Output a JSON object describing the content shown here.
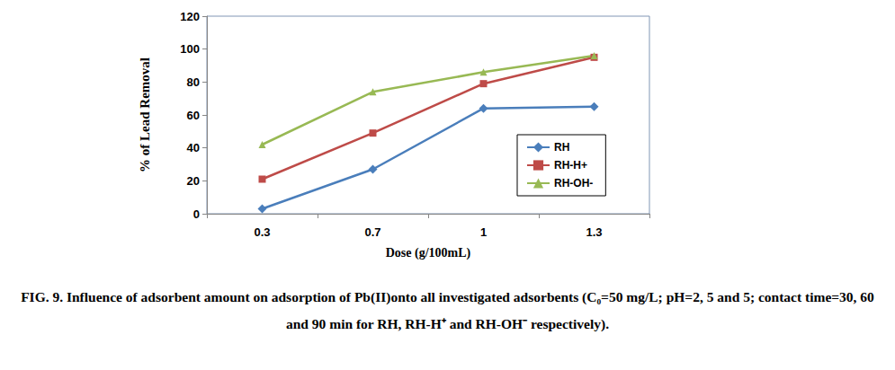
{
  "chart_data": {
    "type": "line",
    "xlabel": "Dose (g/100mL)",
    "ylabel": "% of Lead Removal",
    "caption": "FIG. 9. Influence of adsorbent amount on adsorption of Pb(II)onto all investigated adsorbents (C₀=50 mg/L; pH=2, 5 and 5; contact time=30, 60 and 90 min for RH, RH-H⁺ and RH-OH⁻ respectively).",
    "categories": [
      "0.3",
      "0.7",
      "1",
      "1.3"
    ],
    "series": [
      {
        "name": "RH",
        "color": "#4a7ebb",
        "marker": "diamond",
        "values": [
          3,
          27,
          64,
          65
        ]
      },
      {
        "name": "RH-H+",
        "color": "#be4b48",
        "marker": "square",
        "values": [
          21,
          49,
          79,
          95
        ]
      },
      {
        "name": "RH-OH-",
        "color": "#98b954",
        "marker": "triangle",
        "values": [
          42,
          74,
          86,
          96
        ]
      }
    ],
    "ylim": [
      0,
      120
    ],
    "yticks": [
      0,
      20,
      40,
      60,
      80,
      100,
      120
    ],
    "grid": false,
    "legend": "right"
  }
}
